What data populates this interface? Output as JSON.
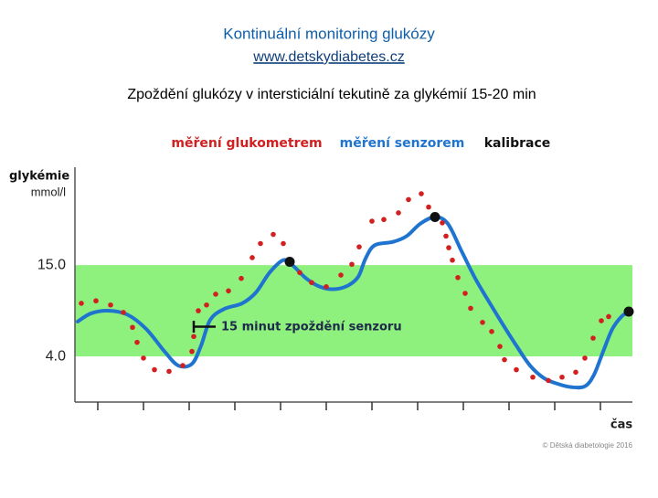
{
  "header": {
    "title": "Kontinuální monitoring glukózy",
    "link": "www.detskydiabetes.cz",
    "subtitle": "Zpoždění glukózy v intersticiální tekutině za glykémií 15-20 min"
  },
  "chart_data": {
    "type": "line",
    "y_label": "glykémie",
    "y_unit": "mmol/l",
    "x_label": "čas",
    "annotation": "15 minut zpoždění senzoru",
    "copyright": "© Dětská diabetologie 2016",
    "xlim": [
      -0.5,
      11.7
    ],
    "xticks": [
      0,
      1,
      2,
      3,
      4,
      5,
      6,
      7,
      8,
      9,
      10,
      11
    ],
    "ylim": [
      -1.5,
      26.8
    ],
    "yticks": [
      {
        "value": 15,
        "label": "15.0"
      },
      {
        "value": 4,
        "label": "4.0"
      }
    ],
    "target_range": [
      4,
      15
    ],
    "target_color": "#8ef07d",
    "series": [
      {
        "name": "měření glukometrem",
        "color": "#d21f1f",
        "mark": "dots",
        "x": [
          -0.36,
          -0.04,
          0.28,
          0.56,
          0.76,
          0.86,
          1.0,
          1.24,
          1.56,
          1.86,
          2.06,
          2.1,
          2.2,
          2.38,
          2.58,
          2.86,
          3.14,
          3.38,
          3.56,
          3.84,
          4.06,
          4.42,
          4.68,
          5.0,
          5.32,
          5.56,
          5.72,
          6.0,
          6.26,
          6.58,
          6.8,
          7.08,
          7.24,
          7.54,
          7.62,
          7.68,
          7.76,
          7.88,
          8.04,
          8.16,
          8.42,
          8.62,
          8.8,
          8.9,
          9.16,
          9.52,
          9.86,
          10.16,
          10.46,
          10.66,
          10.84,
          11.02,
          11.18
        ],
        "values": [
          10.4,
          10.7,
          10.2,
          9.3,
          7.5,
          5.7,
          3.8,
          2.4,
          2.2,
          2.9,
          4.6,
          6.4,
          9.5,
          10.2,
          11.5,
          11.9,
          13.4,
          15.9,
          17.6,
          18.7,
          17.6,
          14.1,
          12.9,
          12.4,
          13.8,
          15.1,
          17.2,
          20.3,
          20.5,
          21.3,
          22.9,
          23.6,
          22.0,
          20.1,
          18.5,
          17.1,
          15.6,
          13.5,
          11.6,
          9.8,
          8.1,
          7.0,
          5.2,
          3.6,
          2.4,
          1.5,
          1.1,
          1.5,
          2.1,
          3.8,
          6.2,
          8.3,
          8.8
        ]
      },
      {
        "name": "měření senzorem",
        "color": "#1f74d0",
        "mark": "line",
        "x": [
          -0.44,
          -0.14,
          0.26,
          0.66,
          1.06,
          1.46,
          1.76,
          2.06,
          2.26,
          2.46,
          2.76,
          3.16,
          3.46,
          3.76,
          4.06,
          4.26,
          4.56,
          4.86,
          5.16,
          5.46,
          5.7,
          5.86,
          6.06,
          6.46,
          6.76,
          7.06,
          7.38,
          7.66,
          7.96,
          8.26,
          8.56,
          8.86,
          9.16,
          9.46,
          9.76,
          10.06,
          10.36,
          10.66,
          10.86,
          11.06,
          11.26,
          11.46,
          11.62
        ],
        "values": [
          8.2,
          9.2,
          9.5,
          9.0,
          7.3,
          4.6,
          2.9,
          3.1,
          5.3,
          8.4,
          9.7,
          10.4,
          11.7,
          14.1,
          15.6,
          15.0,
          13.4,
          12.4,
          12.1,
          12.5,
          13.6,
          15.8,
          17.4,
          17.8,
          18.5,
          20.0,
          20.8,
          20.0,
          16.7,
          13.4,
          10.6,
          7.9,
          5.3,
          2.9,
          1.4,
          0.7,
          0.3,
          0.4,
          1.8,
          4.6,
          7.3,
          8.8,
          9.4
        ]
      },
      {
        "name": "kalibrace",
        "color": "#111111",
        "mark": "dots-large",
        "x": [
          4.2,
          7.38,
          11.62
        ],
        "values": [
          15.4,
          20.8,
          9.4
        ]
      }
    ]
  }
}
